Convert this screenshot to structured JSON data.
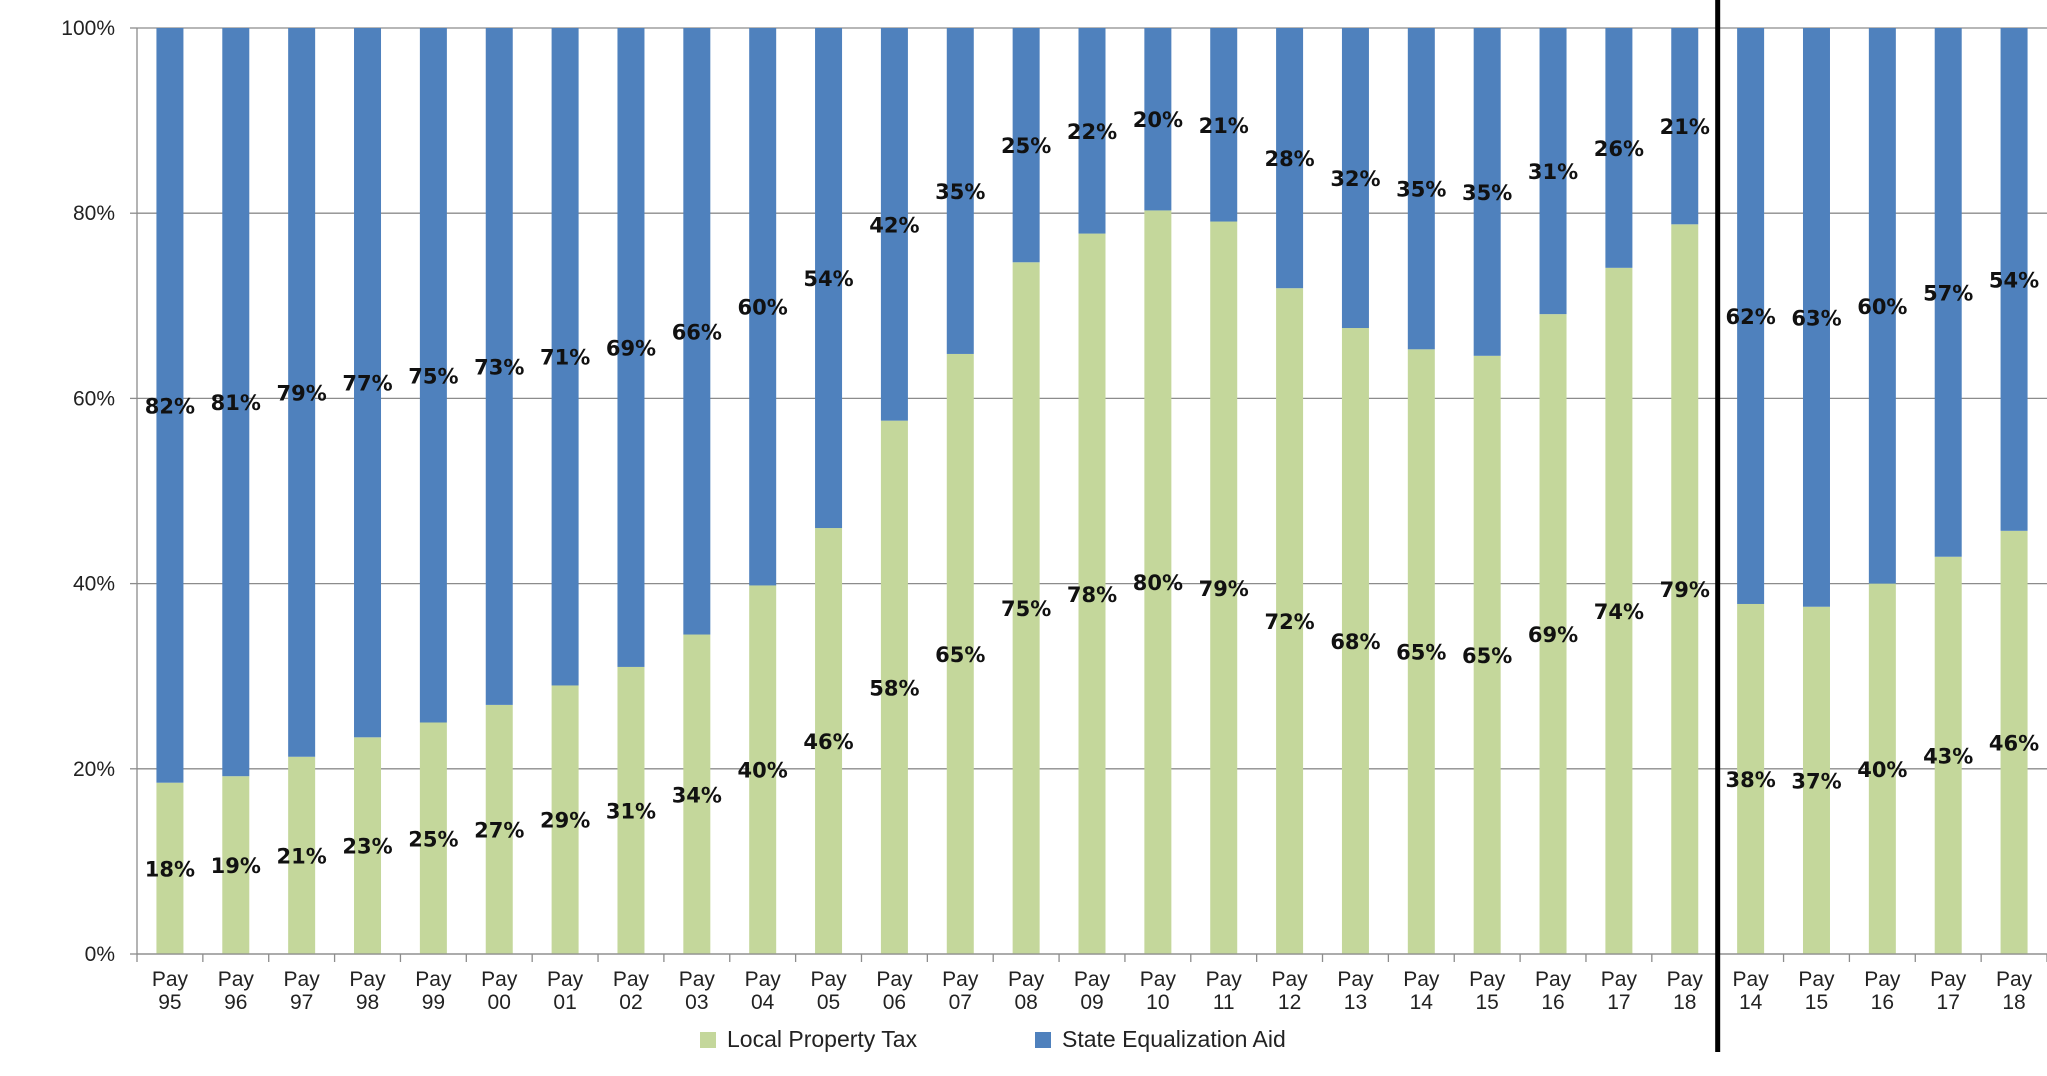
{
  "chart_data": {
    "type": "bar",
    "stacked": true,
    "percent_stacked": true,
    "categories": [
      [
        "Pay",
        "95"
      ],
      [
        "Pay",
        "96"
      ],
      [
        "Pay",
        "97"
      ],
      [
        "Pay",
        "98"
      ],
      [
        "Pay",
        "99"
      ],
      [
        "Pay",
        "00"
      ],
      [
        "Pay",
        "01"
      ],
      [
        "Pay",
        "02"
      ],
      [
        "Pay",
        "03"
      ],
      [
        "Pay",
        "04"
      ],
      [
        "Pay",
        "05"
      ],
      [
        "Pay",
        "06"
      ],
      [
        "Pay",
        "07"
      ],
      [
        "Pay",
        "08"
      ],
      [
        "Pay",
        "09"
      ],
      [
        "Pay",
        "10"
      ],
      [
        "Pay",
        "11"
      ],
      [
        "Pay",
        "12"
      ],
      [
        "Pay",
        "13"
      ],
      [
        "Pay",
        "14"
      ],
      [
        "Pay",
        "15"
      ],
      [
        "Pay",
        "16"
      ],
      [
        "Pay",
        "17"
      ],
      [
        "Pay",
        "18"
      ],
      [
        "Pay",
        "14"
      ],
      [
        "Pay",
        "15"
      ],
      [
        "Pay",
        "16"
      ],
      [
        "Pay",
        "17"
      ],
      [
        "Pay",
        "18"
      ]
    ],
    "series": [
      {
        "name": "Local Property Tax",
        "color": "#c4d79b",
        "values": [
          18.5,
          19.2,
          21.3,
          23.4,
          25,
          26.9,
          29,
          31,
          34.5,
          39.8,
          46,
          57.6,
          64.8,
          74.7,
          77.8,
          80.3,
          79.1,
          71.9,
          67.6,
          65.3,
          64.6,
          69.1,
          74.1,
          78.8,
          37.8,
          37.5,
          40,
          42.9,
          45.7
        ],
        "labels": [
          "18%",
          "19%",
          "21%",
          "23%",
          "25%",
          "27%",
          "29%",
          "31%",
          "34%",
          "40%",
          "46%",
          "58%",
          "65%",
          "75%",
          "78%",
          "80%",
          "79%",
          "72%",
          "68%",
          "65%",
          "65%",
          "69%",
          "74%",
          "79%",
          "38%",
          "37%",
          "40%",
          "43%",
          "46%"
        ]
      },
      {
        "name": "State Equalization Aid",
        "color": "#4f81bd",
        "values": [
          81.5,
          80.8,
          78.7,
          76.6,
          75,
          73.1,
          71,
          69,
          65.5,
          60.2,
          54,
          42.4,
          35.2,
          25.3,
          22.2,
          19.7,
          20.9,
          28.1,
          32.4,
          34.7,
          35.4,
          30.9,
          25.9,
          21.2,
          62.2,
          62.5,
          60,
          57.1,
          54.3
        ],
        "labels": [
          "82%",
          "81%",
          "79%",
          "77%",
          "75%",
          "73%",
          "71%",
          "69%",
          "66%",
          "60%",
          "54%",
          "42%",
          "35%",
          "25%",
          "22%",
          "20%",
          "21%",
          "28%",
          "32%",
          "35%",
          "35%",
          "31%",
          "26%",
          "21%",
          "62%",
          "63%",
          "60%",
          "57%",
          "54%"
        ]
      }
    ],
    "y_ticks": [
      "0%",
      "20%",
      "40%",
      "60%",
      "80%",
      "100%"
    ],
    "ylim": [
      0,
      100
    ],
    "grid": true,
    "legend_position": "bottom-center",
    "divider_after_index": 23
  }
}
